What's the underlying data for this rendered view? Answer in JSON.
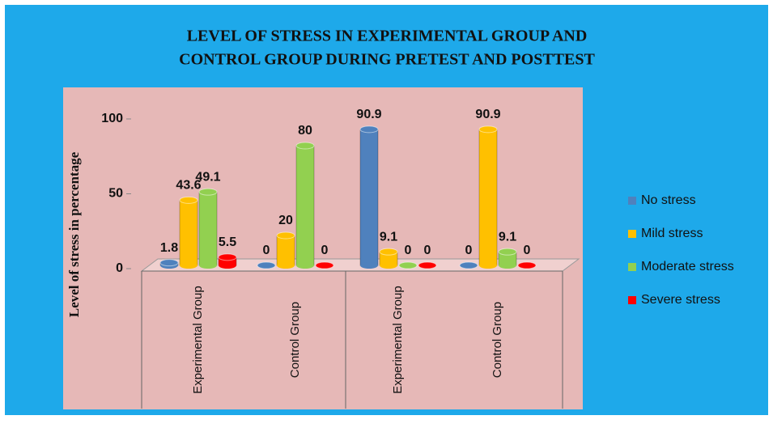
{
  "chart_data": {
    "type": "bar",
    "title": [
      "LEVEL OF STRESS IN EXPERIMENTAL GROUP AND",
      "CONTROL GROUP DURING PRETEST AND POSTTEST"
    ],
    "y_label": "Level of stress in percentage",
    "categories": [
      "Experimental Group",
      "Control Group",
      "Experimental Group",
      "Control Group"
    ],
    "series": [
      {
        "name": "No stress",
        "color": "#4f81bd",
        "values": [
          1.8,
          0,
          90.9,
          0
        ]
      },
      {
        "name": "Mild stress",
        "color": "#ffc000",
        "values": [
          43.6,
          20,
          9.1,
          90.9
        ]
      },
      {
        "name": "Moderate stress",
        "color": "#92d050",
        "values": [
          49.1,
          80,
          0,
          9.1
        ]
      },
      {
        "name": "Severe stress",
        "color": "#ff0000",
        "values": [
          5.5,
          0,
          0,
          0
        ]
      }
    ],
    "ylim": [
      0,
      100
    ],
    "yticks": [
      0,
      50,
      100
    ],
    "legend": "right"
  }
}
